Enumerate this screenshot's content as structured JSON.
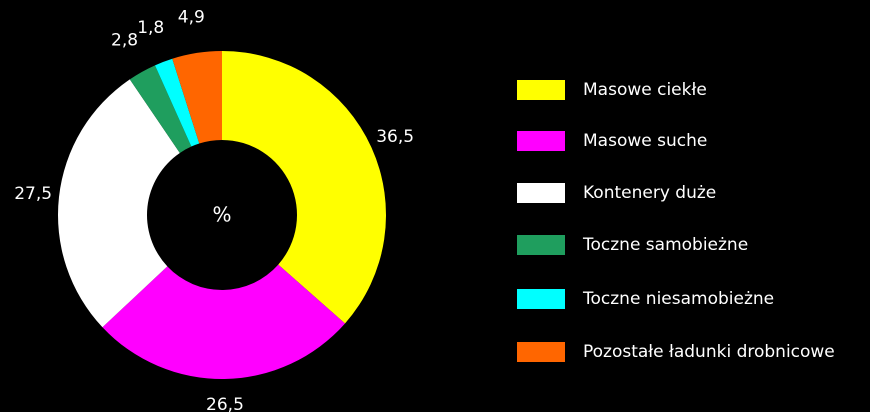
{
  "chart_data": {
    "type": "donut",
    "center_label": "%",
    "categories": [
      "Masowe ciekłe",
      "Masowe suche",
      "Kontenery duże",
      "Toczne samobieżne",
      "Toczne niesamobieżne",
      "Pozostałe ładunki drobnicowe"
    ],
    "values": [
      36.5,
      26.5,
      27.5,
      2.8,
      1.8,
      4.9
    ],
    "value_labels": [
      "36,5",
      "26,5",
      "27,5",
      "2,8",
      "1,8",
      "4,9"
    ],
    "colors": [
      "#ffff00",
      "#ff00ff",
      "#ffffff",
      "#1f9e5e",
      "#00ffff",
      "#ff6600"
    ],
    "legend": "right"
  }
}
